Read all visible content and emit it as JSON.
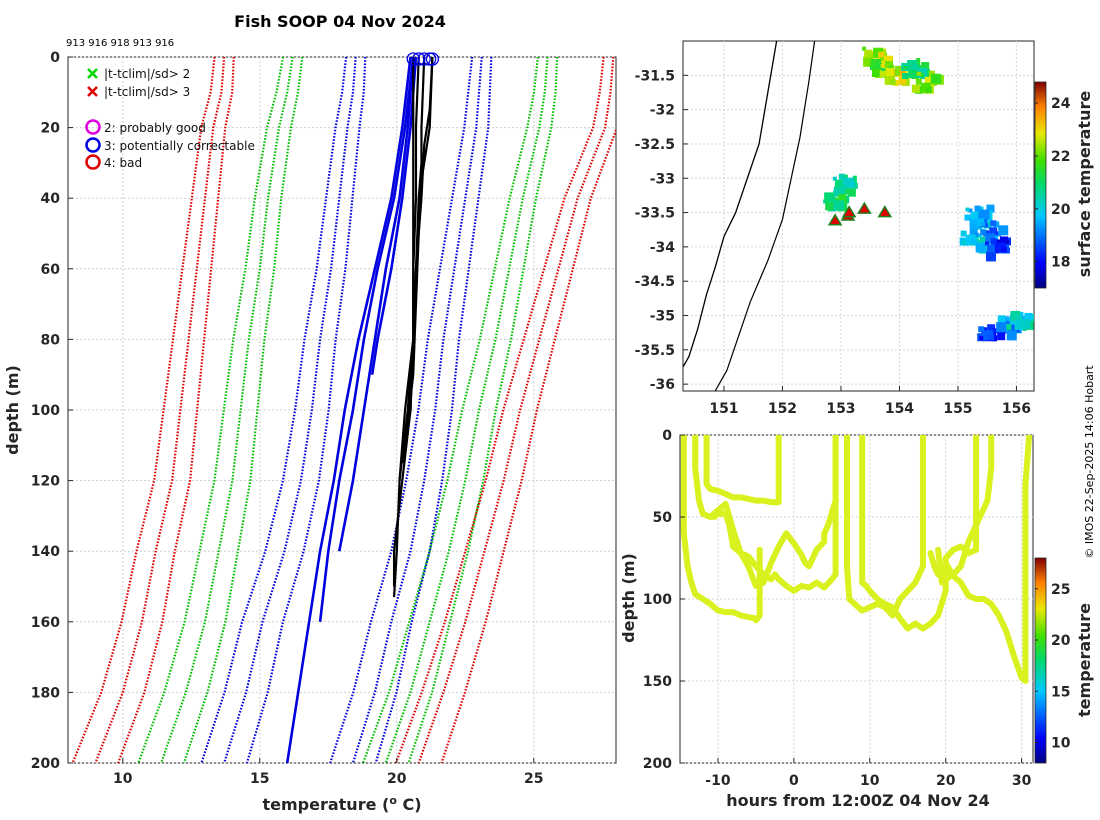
{
  "chart_data": [
    {
      "type": "line",
      "title": "Fish SOOP 04 Nov 2024",
      "header_ids": "913 916 918 913 916",
      "xlabel": "temperature (",
      "xlabel_sup": "o",
      "xlabel_tail": " C)",
      "ylabel": "depth (m)",
      "xlim": [
        8,
        28
      ],
      "ylim": [
        0,
        200
      ],
      "xticks": [
        "10",
        "15",
        "20",
        "25"
      ],
      "yticks": [
        "0",
        "20",
        "40",
        "60",
        "80",
        "100",
        "120",
        "140",
        "160",
        "180",
        "200"
      ],
      "legend": [
        {
          "marker": "x",
          "color": "#00d800",
          "label": "|t-tclim|/sd> 2"
        },
        {
          "marker": "x",
          "color": "#e00000",
          "label": "|t-tclim|/sd> 3"
        },
        {
          "marker": "o",
          "color": "#e000e0",
          "label": "2: probably good"
        },
        {
          "marker": "o",
          "color": "#0000e0",
          "label": "3: potentially correctable"
        },
        {
          "marker": "o",
          "color": "#e00000",
          "label": "4: bad"
        }
      ],
      "climatology_bounds": [
        {
          "name": "clim-3sd-low",
          "color": "#e00000",
          "depth": [
            0,
            10,
            20,
            40,
            60,
            80,
            100,
            120,
            140,
            160,
            180,
            200
          ],
          "temp": [
            13.7,
            13.6,
            13.3,
            13.0,
            12.7,
            12.4,
            12.1,
            11.8,
            11.2,
            10.7,
            10.0,
            9.0
          ]
        },
        {
          "name": "clim-2sd-low",
          "color": "#00c000",
          "depth": [
            0,
            10,
            20,
            40,
            60,
            80,
            100,
            120,
            140,
            160,
            180,
            200
          ],
          "temp": [
            16.2,
            16.0,
            15.7,
            15.3,
            15.0,
            14.6,
            14.3,
            14.0,
            13.5,
            13.0,
            12.3,
            11.4
          ]
        },
        {
          "name": "clim-1sd-low",
          "color": "#0000e0",
          "depth": [
            0,
            10,
            20,
            40,
            60,
            80,
            100,
            120,
            140,
            160,
            180,
            200
          ],
          "temp": [
            18.5,
            18.4,
            18.2,
            17.9,
            17.6,
            17.2,
            16.9,
            16.5,
            15.9,
            15.1,
            14.5,
            13.7
          ]
        },
        {
          "name": "clim-1sd-high",
          "color": "#0000e0",
          "depth": [
            0,
            10,
            20,
            40,
            60,
            80,
            100,
            120,
            140,
            160,
            180,
            200
          ],
          "temp": [
            23.1,
            23.0,
            22.9,
            22.5,
            22.1,
            21.7,
            21.4,
            21.0,
            20.5,
            19.8,
            19.2,
            18.4
          ]
        },
        {
          "name": "clim-2sd-high",
          "color": "#00c000",
          "depth": [
            0,
            10,
            20,
            40,
            60,
            80,
            100,
            120,
            140,
            160,
            180,
            200
          ],
          "temp": [
            25.5,
            25.4,
            25.2,
            24.6,
            24.1,
            23.6,
            23.0,
            22.5,
            21.9,
            21.2,
            20.5,
            19.6
          ]
        },
        {
          "name": "clim-3sd-high",
          "color": "#e00000",
          "depth": [
            0,
            10,
            20,
            40,
            60,
            80,
            100,
            120,
            140,
            160,
            180,
            200
          ],
          "temp": [
            27.9,
            27.8,
            27.6,
            26.6,
            25.9,
            25.2,
            24.5,
            23.9,
            23.2,
            22.5,
            21.7,
            20.8
          ]
        }
      ],
      "flagged_profiles": [
        {
          "name": "blue-1",
          "depth": [
            0,
            20,
            40,
            60,
            80,
            100,
            120,
            140,
            160,
            180,
            200
          ],
          "temp": [
            20.5,
            20.2,
            19.8,
            19.2,
            18.6,
            18.1,
            17.7,
            17.2,
            16.8,
            16.4,
            16.0
          ]
        },
        {
          "name": "blue-2",
          "depth": [
            0,
            20,
            40,
            60,
            80,
            100,
            120,
            140,
            160
          ],
          "temp": [
            20.6,
            20.3,
            19.9,
            19.3,
            18.8,
            18.4,
            17.9,
            17.5,
            17.2
          ]
        },
        {
          "name": "blue-3",
          "depth": [
            0,
            20,
            40,
            60,
            80,
            100,
            120,
            140
          ],
          "temp": [
            20.6,
            20.4,
            20.1,
            19.6,
            19.2,
            18.8,
            18.4,
            17.9
          ]
        },
        {
          "name": "blue-4",
          "depth": [
            0,
            20,
            40,
            60,
            80,
            90
          ],
          "temp": [
            20.7,
            20.5,
            20.2,
            19.8,
            19.3,
            19.1
          ]
        }
      ],
      "good_profiles": [
        {
          "name": "black-1",
          "depth": [
            0,
            20,
            40,
            60,
            80,
            100,
            120,
            140,
            150
          ],
          "temp": [
            20.6,
            20.6,
            20.6,
            20.6,
            20.6,
            20.5,
            20.2,
            19.9,
            19.9
          ]
        },
        {
          "name": "black-2",
          "depth": [
            0,
            20,
            40,
            60,
            80,
            100,
            120,
            140,
            153
          ],
          "temp": [
            20.8,
            20.7,
            20.7,
            20.6,
            20.6,
            20.4,
            20.1,
            20.0,
            19.9
          ]
        },
        {
          "name": "black-3",
          "depth": [
            0,
            20,
            30,
            40,
            60,
            80,
            100,
            120
          ],
          "temp": [
            21.0,
            20.9,
            20.9,
            20.8,
            20.7,
            20.6,
            20.3,
            20.1
          ]
        },
        {
          "name": "black-4",
          "depth": [
            0,
            20,
            25,
            35,
            50,
            70,
            90,
            110
          ],
          "temp": [
            21.3,
            21.2,
            21.1,
            20.9,
            20.8,
            20.7,
            20.6,
            20.3
          ]
        },
        {
          "name": "black-5",
          "depth": [
            0,
            15,
            25,
            40,
            60,
            80,
            100,
            115
          ],
          "temp": [
            21.3,
            21.2,
            21.0,
            20.9,
            20.7,
            20.6,
            20.5,
            20.2
          ]
        }
      ],
      "surface_circles": [
        20.6,
        20.8,
        21.0,
        21.2,
        21.3
      ]
    },
    {
      "type": "heatmap",
      "xlim": [
        150.3,
        156.3
      ],
      "ylim": [
        -36.1,
        -31.0
      ],
      "xticks": [
        "151",
        "152",
        "153",
        "154",
        "155",
        "156"
      ],
      "yticks": [
        "-31.5",
        "-32",
        "-32.5",
        "-33",
        "-33.5",
        "-34",
        "-34.5",
        "-35",
        "-35.5",
        "-36"
      ],
      "colorbar_label": "surface temperature",
      "colorbar_ticks": [
        "18",
        "20",
        "22",
        "24"
      ],
      "colorbar_range": [
        17,
        24.8
      ],
      "sst_patches": [
        {
          "lon": 153.55,
          "lat": -31.2,
          "value": 22.5
        },
        {
          "lon": 153.65,
          "lat": -31.35,
          "value": 21.8
        },
        {
          "lon": 153.85,
          "lat": -31.45,
          "value": 22.8
        },
        {
          "lon": 154.2,
          "lat": -31.35,
          "value": 21.0
        },
        {
          "lon": 154.4,
          "lat": -31.55,
          "value": 22.2
        },
        {
          "lon": 153.05,
          "lat": -33.05,
          "value": 20.5
        },
        {
          "lon": 152.85,
          "lat": -33.25,
          "value": 20.9
        },
        {
          "lon": 155.3,
          "lat": -33.5,
          "value": 19.5
        },
        {
          "lon": 155.2,
          "lat": -33.85,
          "value": 19.8
        },
        {
          "lon": 155.5,
          "lat": -33.7,
          "value": 19.0
        },
        {
          "lon": 155.65,
          "lat": -33.95,
          "value": 18.2
        },
        {
          "lon": 155.8,
          "lat": -35.1,
          "value": 19.2
        },
        {
          "lon": 156.0,
          "lat": -35.05,
          "value": 20.2
        },
        {
          "lon": 155.5,
          "lat": -35.2,
          "value": 18.5
        }
      ],
      "stations": [
        {
          "lon": 152.9,
          "lat": -33.62
        },
        {
          "lon": 153.12,
          "lat": -33.55
        },
        {
          "lon": 153.14,
          "lat": -33.5
        },
        {
          "lon": 153.4,
          "lat": -33.45
        },
        {
          "lon": 153.75,
          "lat": -33.5
        }
      ],
      "coastline": {
        "lon": [
          151.9,
          151.7,
          151.6,
          151.4,
          151.2,
          151.0,
          150.85,
          150.7,
          150.55,
          150.4,
          150.3
        ],
        "lat": [
          -31.0,
          -32.0,
          -32.5,
          -33.0,
          -33.5,
          -33.85,
          -34.3,
          -34.7,
          -35.2,
          -35.6,
          -35.75
        ]
      },
      "isobath": {
        "lon": [
          152.55,
          152.45,
          152.3,
          152.15,
          152.0,
          151.75,
          151.45,
          151.25,
          151.05,
          150.85
        ],
        "lat": [
          -31.0,
          -31.6,
          -32.4,
          -33.0,
          -33.6,
          -34.2,
          -34.8,
          -35.3,
          -35.8,
          -36.1
        ]
      }
    },
    {
      "type": "scatter",
      "xlabel": "hours from 12:00Z 04 Nov 24",
      "ylabel": "depth (m)",
      "xlim": [
        -15,
        31.5
      ],
      "ylim": [
        0,
        200
      ],
      "xticks": [
        "-10",
        "0",
        "10",
        "20",
        "30"
      ],
      "yticks": [
        "0",
        "50",
        "100",
        "150",
        "200"
      ],
      "colorbar_label": "temperature",
      "colorbar_ticks": [
        "10",
        "15",
        "20",
        "25"
      ],
      "colorbar_range": [
        8,
        28
      ],
      "trace_color": "#d9f21f",
      "traces": [
        {
          "x": [
            -14.5,
            -14.5,
            -14.0,
            -13.5,
            -13.0,
            -12.0,
            -11.0,
            -10.0,
            -9.0,
            -8.0,
            -7.0,
            -6.0,
            -5.0,
            -5.0,
            -4.5,
            -4.5
          ],
          "y": [
            0,
            60,
            80,
            90,
            97,
            100,
            103,
            107,
            108,
            108,
            110,
            111,
            112,
            113,
            110,
            70
          ]
        },
        {
          "x": [
            -13.0,
            -13.0,
            -12.5,
            -12.0,
            -11.0,
            -10.0,
            -9.0,
            -8.0,
            -7.0,
            -6.0,
            -5.0,
            -4.0,
            -3.0,
            -2.5,
            -2.0,
            -1.0,
            0.0,
            1.0,
            2.0,
            3.0,
            4.0,
            5.0,
            5.5,
            5.5
          ],
          "y": [
            0,
            20,
            40,
            48,
            50,
            46,
            42,
            58,
            72,
            74,
            80,
            85,
            88,
            85,
            88,
            92,
            95,
            92,
            93,
            90,
            93,
            88,
            85,
            0
          ]
        },
        {
          "x": [
            -11.5,
            -11.5,
            -11.0,
            -10.0,
            -9.0,
            -8.0,
            -7.0,
            -6.0,
            -5.0,
            -4.0,
            -3.0,
            -2.0,
            -2.0
          ],
          "y": [
            0,
            30,
            33,
            34,
            36,
            38,
            38,
            39,
            40,
            40,
            41,
            41,
            0
          ]
        },
        {
          "x": [
            -10.5,
            -10.0,
            -9.0,
            -8.5,
            -8.0,
            -7.0,
            -6.0,
            -5.0,
            -4.0,
            -3.0,
            -2.0,
            -1.0,
            0.0,
            1.0,
            1.5,
            2.0,
            3.0,
            4.0,
            4.0,
            4.5,
            5.5,
            5.5
          ],
          "y": [
            50,
            48,
            48,
            55,
            68,
            72,
            80,
            92,
            90,
            78,
            68,
            60,
            66,
            73,
            78,
            80,
            70,
            65,
            60,
            55,
            40,
            0
          ]
        },
        {
          "x": [
            7.0,
            7.0,
            7.3,
            8.0,
            9.0,
            10.0,
            11.0,
            12.0,
            13.0,
            14.0,
            15.0,
            16.0,
            17.0,
            17.0
          ],
          "y": [
            0,
            80,
            100,
            103,
            107,
            105,
            103,
            105,
            110,
            100,
            95,
            90,
            80,
            0
          ]
        },
        {
          "x": [
            9.0,
            9.0,
            9.5,
            10.0,
            11.0,
            12.0,
            13.0,
            14.0,
            15.0,
            16.0,
            17.0,
            18.0,
            19.0,
            20.0,
            20.0,
            21.0,
            22.0,
            23.0,
            24.0,
            24.0
          ],
          "y": [
            0,
            90,
            92,
            95,
            100,
            103,
            105,
            112,
            118,
            115,
            118,
            115,
            110,
            95,
            75,
            70,
            68,
            72,
            70,
            0
          ]
        },
        {
          "x": [
            18.0,
            18.5,
            19.0,
            20.0,
            21.0,
            22.0,
            23.0,
            24.0,
            25.0,
            26.0,
            27.0,
            28.0,
            29.0,
            30.0,
            30.5,
            30.5,
            31.0
          ],
          "y": [
            72,
            80,
            85,
            78,
            86,
            90,
            98,
            100,
            100,
            103,
            110,
            120,
            135,
            148,
            150,
            30,
            0
          ]
        },
        {
          "x": [
            19.0,
            19.5,
            20.0,
            21.0,
            22.0,
            23.0,
            24.0,
            25.0,
            25.5,
            26.0,
            26.0
          ],
          "y": [
            70,
            90,
            88,
            85,
            80,
            65,
            55,
            45,
            40,
            20,
            0
          ]
        }
      ]
    }
  ],
  "copyright": "© IMOS 22-Sep-2025 14:06 Hobart"
}
